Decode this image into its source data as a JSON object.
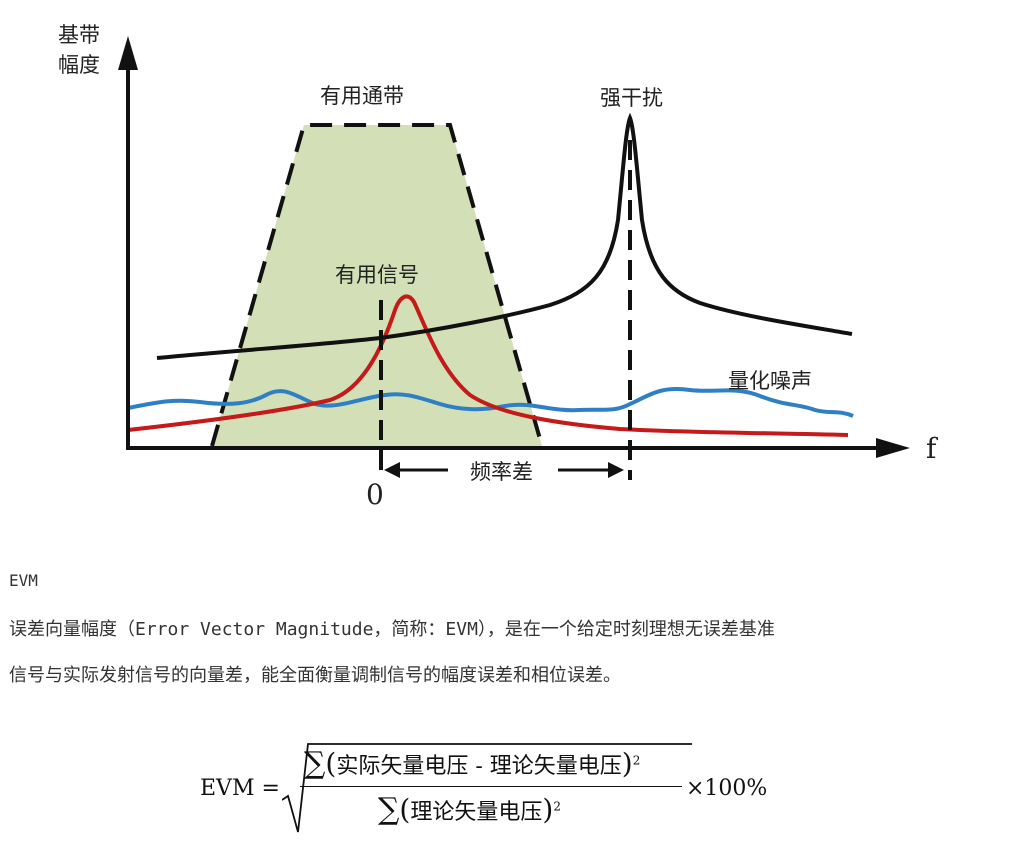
{
  "figure": {
    "y_axis_label_line1": "基带",
    "y_axis_label_line2": "幅度",
    "x_axis_label": "f",
    "origin_label": "0",
    "passband_label": "有用通带",
    "signal_label": "有用信号",
    "interference_label": "强干扰",
    "noise_label": "量化噪声",
    "freq_diff_label": "频率差",
    "colors": {
      "passband_fill": "#d3dfb6",
      "signal": "#c41a1a",
      "noise": "#2f7fc4",
      "interference": "#111111",
      "axis": "#111111"
    }
  },
  "text": {
    "section_title": "EVM",
    "paragraph_line1": "误差向量幅度（Error Vector Magnitude，简称：EVM），是在一个给定时刻理想无误差基准",
    "paragraph_line2": "信号与实际发射信号的向量差，能全面衡量调制信号的幅度误差和相位误差。"
  },
  "formula": {
    "lhs": "EVM =",
    "sum_symbol": "∑",
    "numerator_inner": "实际矢量电压 - 理论矢量电压",
    "denominator_inner": "理论矢量电压",
    "exponent": "2",
    "multiplier": "×100%"
  }
}
